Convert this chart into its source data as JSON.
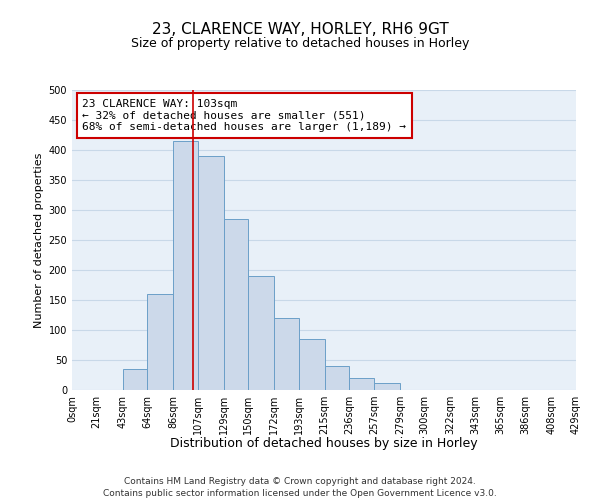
{
  "title": "23, CLARENCE WAY, HORLEY, RH6 9GT",
  "subtitle": "Size of property relative to detached houses in Horley",
  "xlabel": "Distribution of detached houses by size in Horley",
  "ylabel": "Number of detached properties",
  "bin_edges": [
    0,
    21,
    43,
    64,
    86,
    107,
    129,
    150,
    172,
    193,
    215,
    236,
    257,
    279,
    300,
    322,
    343,
    365,
    386,
    408,
    429
  ],
  "bin_counts": [
    0,
    0,
    35,
    160,
    415,
    390,
    285,
    190,
    120,
    85,
    40,
    20,
    12,
    0,
    0,
    0,
    0,
    0,
    0,
    0
  ],
  "bar_facecolor": "#ccd9ea",
  "bar_edgecolor": "#6b9fc8",
  "vline_x": 103,
  "vline_color": "#cc0000",
  "annotation_box_text": "23 CLARENCE WAY: 103sqm\n← 32% of detached houses are smaller (551)\n68% of semi-detached houses are larger (1,189) →",
  "annotation_box_facecolor": "#ffffff",
  "annotation_box_edgecolor": "#cc0000",
  "ylim": [
    0,
    500
  ],
  "yticks": [
    0,
    50,
    100,
    150,
    200,
    250,
    300,
    350,
    400,
    450,
    500
  ],
  "xtick_labels": [
    "0sqm",
    "21sqm",
    "43sqm",
    "64sqm",
    "86sqm",
    "107sqm",
    "129sqm",
    "150sqm",
    "172sqm",
    "193sqm",
    "215sqm",
    "236sqm",
    "257sqm",
    "279sqm",
    "300sqm",
    "322sqm",
    "343sqm",
    "365sqm",
    "386sqm",
    "408sqm",
    "429sqm"
  ],
  "grid_color": "#c8d8e8",
  "background_color": "#e8f0f8",
  "footnote": "Contains HM Land Registry data © Crown copyright and database right 2024.\nContains public sector information licensed under the Open Government Licence v3.0.",
  "title_fontsize": 11,
  "subtitle_fontsize": 9,
  "xlabel_fontsize": 9,
  "ylabel_fontsize": 8,
  "tick_fontsize": 7,
  "annotation_fontsize": 8,
  "footnote_fontsize": 6.5
}
